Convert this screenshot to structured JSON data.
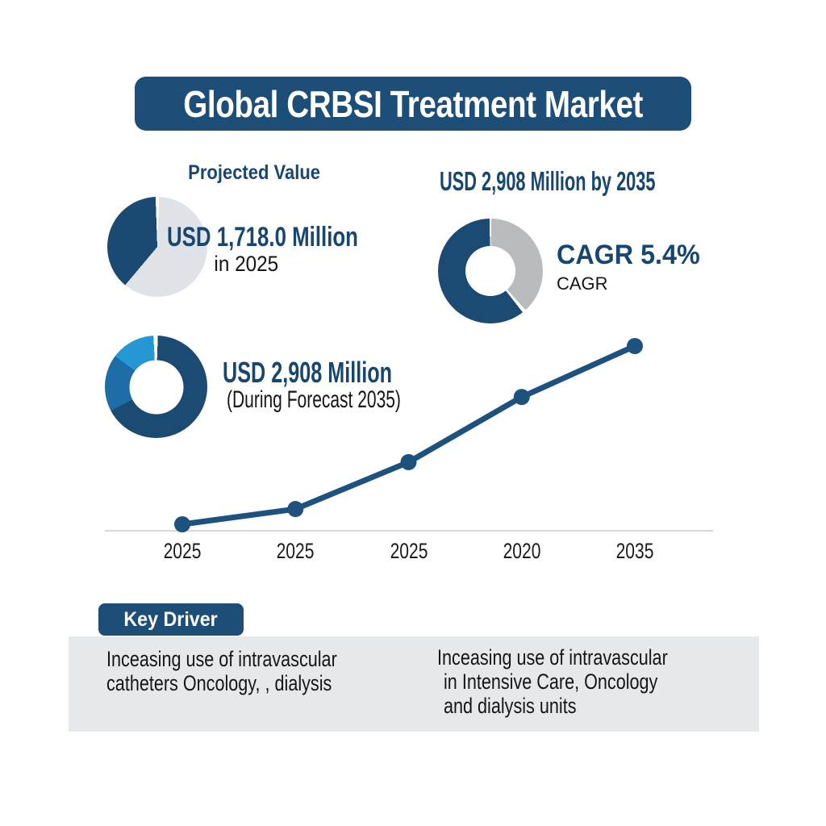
{
  "title": "Global CRBSI Treatment Market",
  "projected": {
    "heading": "Projected Value",
    "value": "USD 1,718.0 Million",
    "period": "in 2025"
  },
  "forecast_heading": "USD 2,908 Million by 2035",
  "cagr": {
    "value": "CAGR 5.4%",
    "label": "CAGR"
  },
  "forecast": {
    "value": "USD 2,908 Million",
    "period": "(During Forecast 2035)"
  },
  "key_driver": {
    "badge": "Key Driver",
    "left_lines": [
      "Inceasing use of intravascular",
      "catheters Oncology, , dialysis"
    ],
    "right_lines": [
      "Inceasing use of intravascular",
      "in Intensive Care, Oncology",
      "and dialysis units"
    ]
  },
  "colors": {
    "banner_navy": "#1d4e78",
    "text_navy": "#17466f",
    "panel_gray": "#e6e9ec",
    "text_black": "#151515",
    "pie_dark": "#1a4a72",
    "pie_light": "#dfe3e8",
    "donut_gray": "#b9bcbf",
    "donut_navy": "#1b4a73",
    "donut_medium_blue": "#1d6ea6",
    "donut_bright_blue": "#2597d3",
    "line_blue": "#1d527f",
    "axis_gray": "#d8d8d8"
  },
  "chart_data": [
    {
      "id": "projected-value-pie",
      "type": "pie",
      "title": "Projected Value",
      "annotation": "USD 1,718.0 Million in 2025",
      "legend": false,
      "segments": [
        {
          "label": "remainder",
          "color": "#dfe3e8",
          "start_deg": 2,
          "end_deg": 220,
          "share_pct": 61
        },
        {
          "label": "market-value-2025",
          "color": "#1a4a72",
          "start_deg": 220,
          "end_deg": 358,
          "share_pct": 39
        }
      ]
    },
    {
      "id": "cagr-donut",
      "type": "pie",
      "donut": true,
      "annotation": "CAGR 5.4%",
      "legend": false,
      "segments": [
        {
          "label": "remainder",
          "color": "#b9bcbf",
          "start_deg": 1,
          "end_deg": 138,
          "share_pct": 38
        },
        {
          "label": "cagr-growth",
          "color": "#1b4a73",
          "start_deg": 142,
          "end_deg": 359,
          "share_pct": 62
        }
      ]
    },
    {
      "id": "forecast-donut",
      "type": "pie",
      "donut": true,
      "annotation": "USD 2,908 Million (During Forecast 2035)",
      "legend": false,
      "segments": [
        {
          "label": "primary",
          "color": "#1b4a73",
          "start_deg": 2,
          "end_deg": 242,
          "share_pct": 67
        },
        {
          "label": "secondary",
          "color": "#1d6ea6",
          "start_deg": 242,
          "end_deg": 307,
          "share_pct": 18
        },
        {
          "label": "tertiary",
          "color": "#2597d3",
          "start_deg": 307,
          "end_deg": 357,
          "share_pct": 15
        }
      ]
    },
    {
      "id": "growth-line",
      "type": "line",
      "x_labels": [
        "2025",
        "2025",
        "2025",
        "2020",
        "2035"
      ],
      "y_estimated_usd_million": [
        1718,
        1820,
        2133,
        2568,
        2908
      ],
      "y_range_usd_million": [
        1718,
        2908
      ],
      "line_color": "#1d527f",
      "marker_color": "#1d527f",
      "axis_color": "#d8d8d8",
      "grid": false,
      "legend": false
    }
  ]
}
